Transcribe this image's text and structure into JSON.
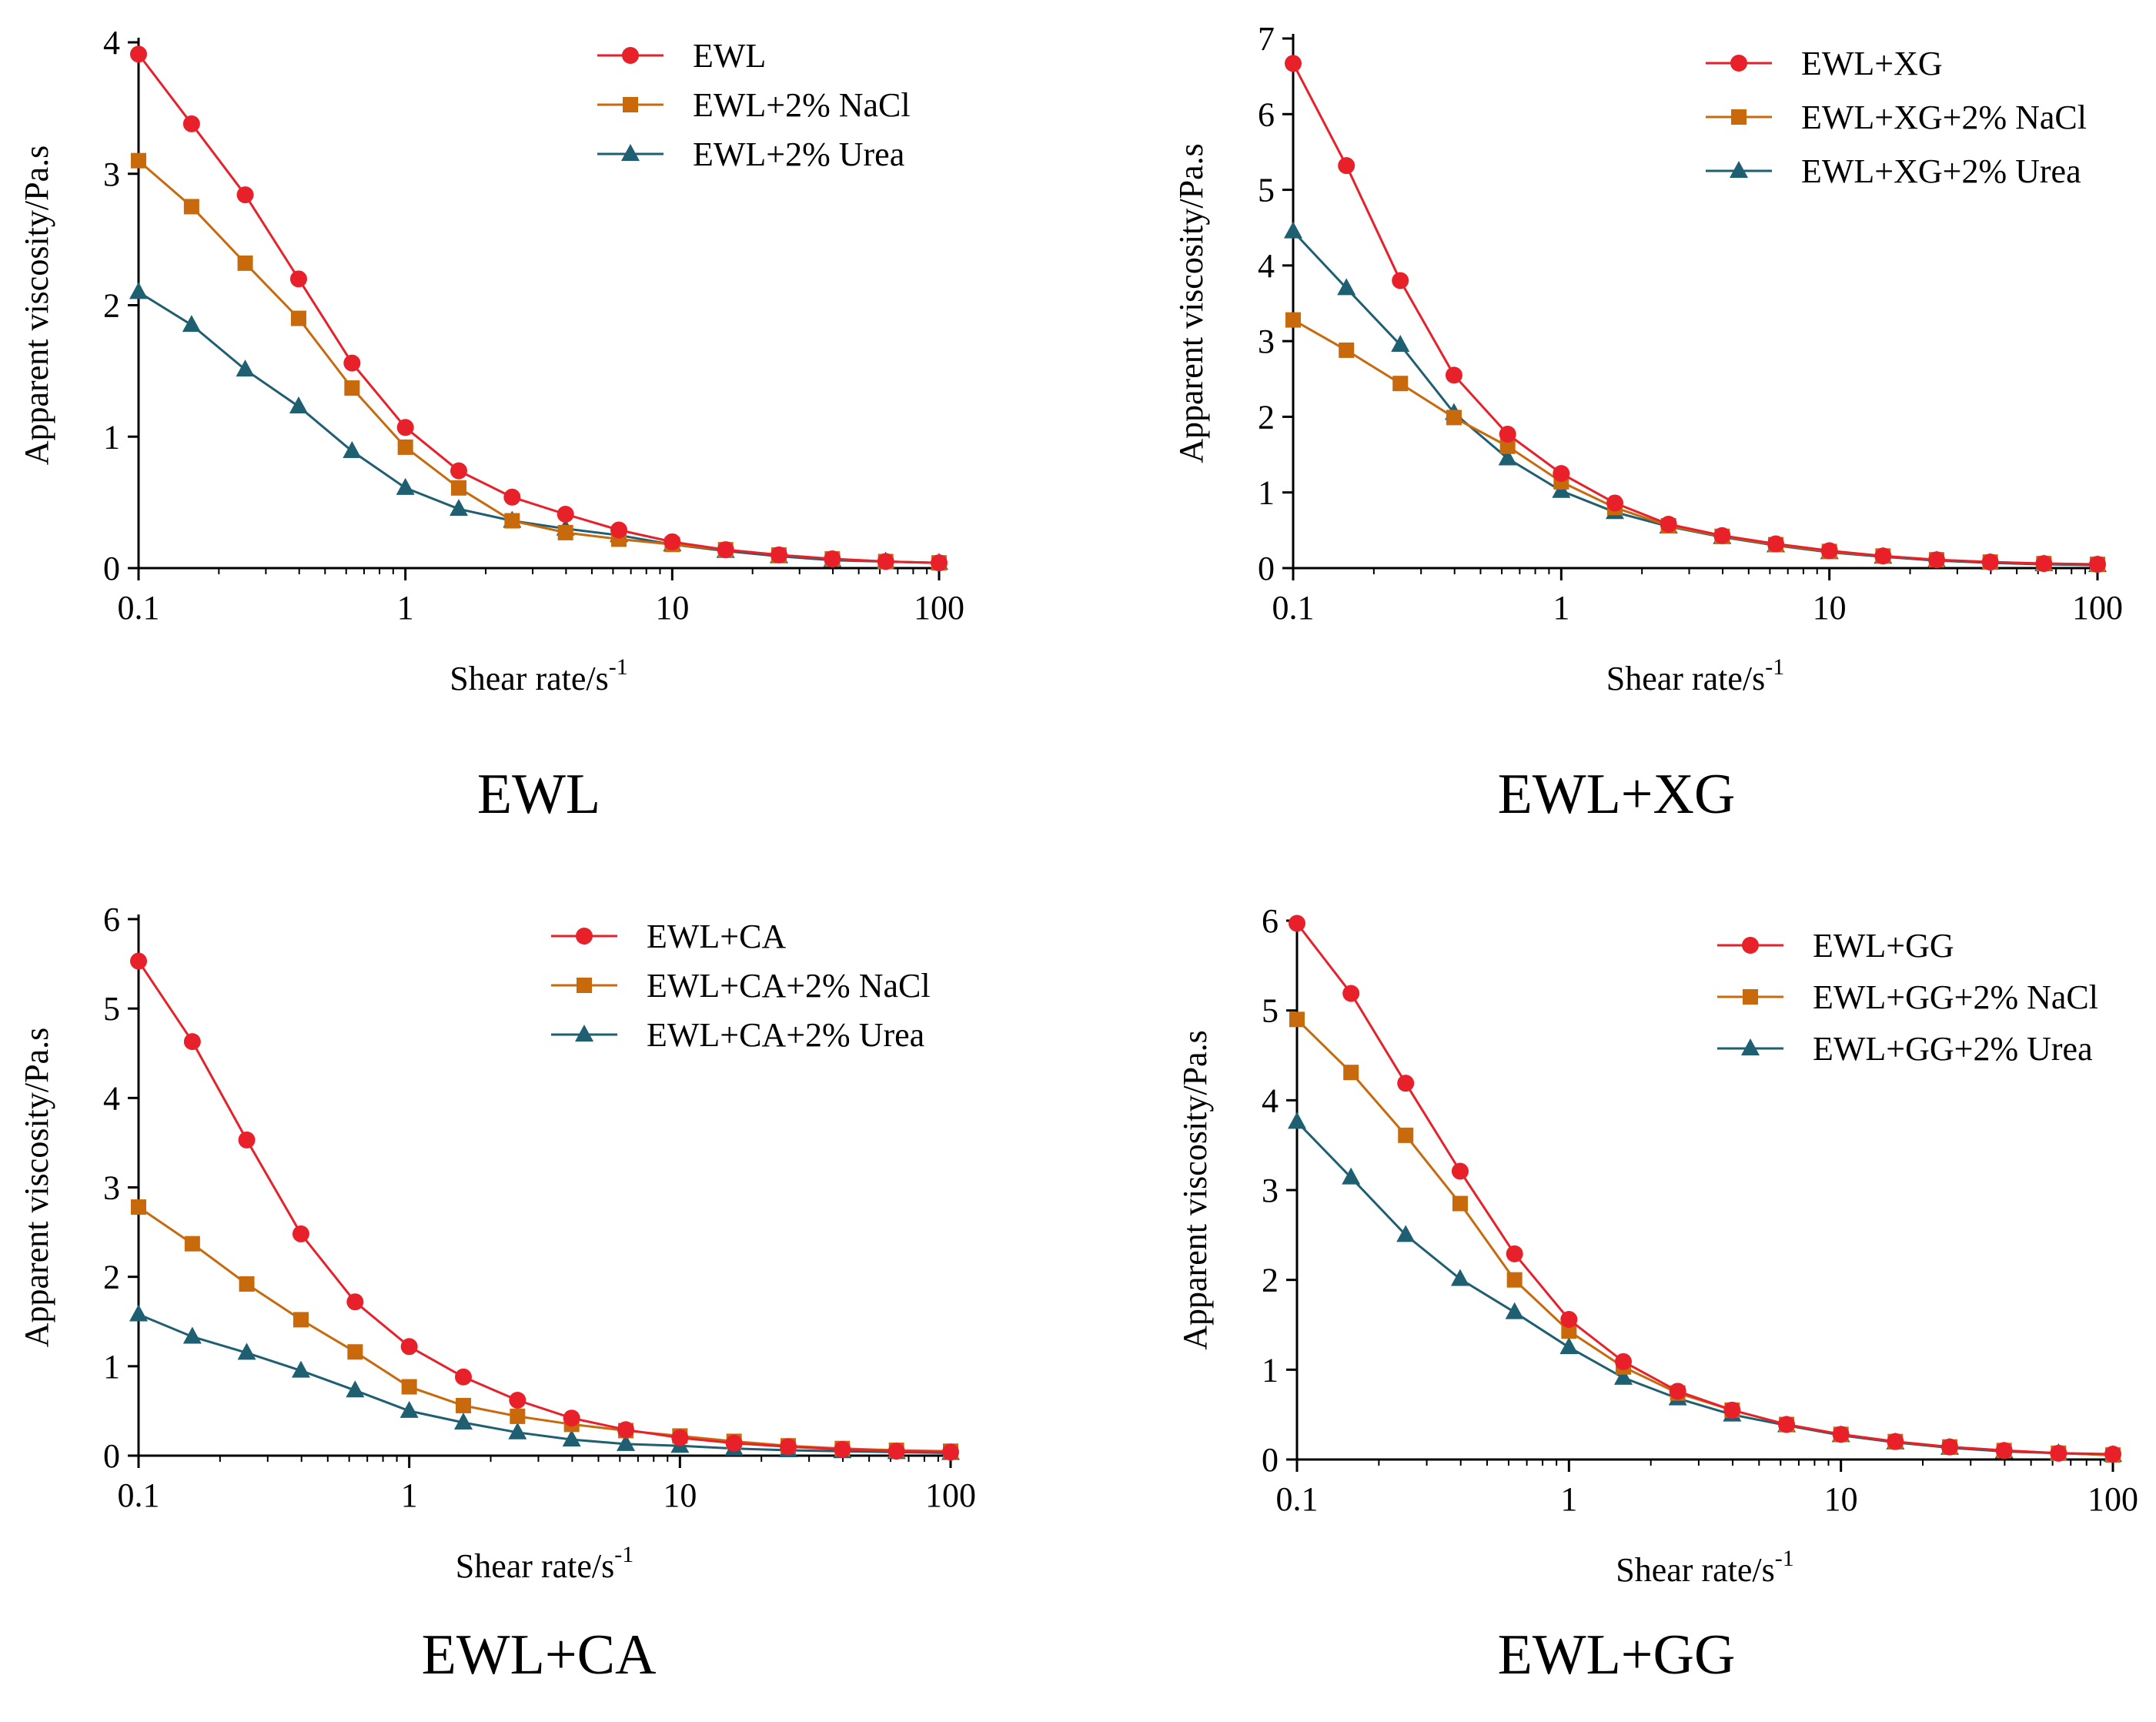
{
  "colors": {
    "red": "#e8202a",
    "orange": "#c8690c",
    "teal": "#1f5f72",
    "axis": "#000000"
  },
  "chart_data": [
    {
      "type": "line",
      "caption": "EWL",
      "xlabel": "Shear rate/s",
      "xlabel_sup": "-1",
      "ylabel": "Apparent viscosity/Pa.s",
      "xscale": "log",
      "xlim": [
        0.1,
        100
      ],
      "ylim": [
        0,
        4
      ],
      "yticks": [
        "0",
        "1",
        "2",
        "3",
        "4"
      ],
      "xticks": [
        "0.1",
        "1",
        "10",
        "100"
      ],
      "legend_position": "top-right",
      "x": [
        0.1,
        0.158,
        0.251,
        0.398,
        0.631,
        1,
        1.585,
        2.512,
        3.981,
        6.31,
        10,
        15.85,
        25.12,
        39.81,
        63.1,
        100
      ],
      "series": [
        {
          "name": "EWL",
          "color": "#e8202a",
          "marker": "circle",
          "values": [
            3.91,
            3.38,
            2.84,
            2.2,
            1.56,
            1.07,
            0.74,
            0.54,
            0.41,
            0.29,
            0.2,
            0.14,
            0.1,
            0.07,
            0.05,
            0.04
          ]
        },
        {
          "name": "EWL+2% NaCl",
          "color": "#c8690c",
          "marker": "square",
          "values": [
            3.1,
            2.75,
            2.32,
            1.9,
            1.37,
            0.92,
            0.61,
            0.36,
            0.27,
            0.22,
            0.18,
            0.14,
            0.1,
            0.07,
            0.05,
            0.04
          ]
        },
        {
          "name": "EWL+2% Urea",
          "color": "#1f5f72",
          "marker": "triangle",
          "values": [
            2.1,
            1.85,
            1.51,
            1.23,
            0.89,
            0.61,
            0.45,
            0.36,
            0.3,
            0.25,
            0.18,
            0.13,
            0.09,
            0.06,
            0.05,
            0.04
          ]
        }
      ]
    },
    {
      "type": "line",
      "caption": "EWL+XG",
      "xlabel": "Shear rate/s",
      "xlabel_sup": "-1",
      "ylabel": "Apparent viscosity/Pa.s",
      "xscale": "log",
      "xlim": [
        0.1,
        100
      ],
      "ylim": [
        0,
        7
      ],
      "yticks": [
        "0",
        "1",
        "2",
        "3",
        "4",
        "5",
        "6",
        "7"
      ],
      "xticks": [
        "0.1",
        "1",
        "10",
        "100"
      ],
      "legend_position": "top-right",
      "x": [
        0.1,
        0.158,
        0.251,
        0.398,
        0.631,
        1,
        1.585,
        2.512,
        3.981,
        6.31,
        10,
        15.85,
        25.12,
        39.81,
        63.1,
        100
      ],
      "series": [
        {
          "name": "EWL+XG",
          "color": "#e8202a",
          "marker": "circle",
          "values": [
            6.67,
            5.32,
            3.8,
            2.55,
            1.77,
            1.25,
            0.86,
            0.58,
            0.43,
            0.32,
            0.23,
            0.16,
            0.11,
            0.08,
            0.06,
            0.05
          ]
        },
        {
          "name": "EWL+XG+2% NaCl",
          "color": "#c8690c",
          "marker": "square",
          "values": [
            3.28,
            2.88,
            2.44,
            1.99,
            1.61,
            1.14,
            0.8,
            0.56,
            0.42,
            0.31,
            0.22,
            0.16,
            0.11,
            0.08,
            0.06,
            0.05
          ]
        },
        {
          "name": "EWL+XG+2% Urea",
          "color": "#1f5f72",
          "marker": "triangle",
          "values": [
            4.45,
            3.7,
            2.95,
            2.05,
            1.45,
            1.02,
            0.74,
            0.55,
            0.41,
            0.3,
            0.21,
            0.15,
            0.1,
            0.07,
            0.05,
            0.04
          ]
        }
      ]
    },
    {
      "type": "line",
      "caption": "EWL+CA",
      "xlabel": "Shear rate/s",
      "xlabel_sup": "-1",
      "ylabel": "Apparent viscosity/Pa.s",
      "xscale": "log",
      "xlim": [
        0.1,
        100
      ],
      "ylim": [
        0,
        6
      ],
      "yticks": [
        "0",
        "1",
        "2",
        "3",
        "4",
        "5",
        "6"
      ],
      "xticks": [
        "0.1",
        "1",
        "10",
        "100"
      ],
      "legend_position": "top-right",
      "x": [
        0.1,
        0.158,
        0.251,
        0.398,
        0.631,
        1,
        1.585,
        2.512,
        3.981,
        6.31,
        10,
        15.85,
        25.12,
        39.81,
        63.1,
        100
      ],
      "series": [
        {
          "name": "EWL+CA",
          "color": "#e8202a",
          "marker": "circle",
          "values": [
            5.53,
            4.63,
            3.53,
            2.48,
            1.72,
            1.22,
            0.88,
            0.62,
            0.42,
            0.29,
            0.2,
            0.14,
            0.1,
            0.07,
            0.05,
            0.04
          ]
        },
        {
          "name": "EWL+CA+2% NaCl",
          "color": "#c8690c",
          "marker": "square",
          "values": [
            2.78,
            2.37,
            1.92,
            1.52,
            1.16,
            0.77,
            0.56,
            0.44,
            0.35,
            0.28,
            0.22,
            0.16,
            0.11,
            0.08,
            0.06,
            0.05
          ]
        },
        {
          "name": "EWL+CA+2% Urea",
          "color": "#1f5f72",
          "marker": "triangle",
          "values": [
            1.58,
            1.33,
            1.15,
            0.95,
            0.73,
            0.5,
            0.37,
            0.26,
            0.18,
            0.13,
            0.11,
            0.08,
            0.06,
            0.05,
            0.04,
            0.03
          ]
        }
      ]
    },
    {
      "type": "line",
      "caption": "EWL+GG",
      "xlabel": "Shear rate/s",
      "xlabel_sup": "-1",
      "ylabel": "Apparent viscosity/Pa.s",
      "xscale": "log",
      "xlim": [
        0.1,
        100
      ],
      "ylim": [
        0,
        6
      ],
      "yticks": [
        "0",
        "1",
        "2",
        "3",
        "4",
        "5",
        "6"
      ],
      "xticks": [
        "0.1",
        "1",
        "10",
        "100"
      ],
      "legend_position": "top-right",
      "x": [
        0.1,
        0.158,
        0.251,
        0.398,
        0.631,
        1,
        1.585,
        2.512,
        3.981,
        6.31,
        10,
        15.85,
        25.12,
        39.81,
        63.1,
        100
      ],
      "series": [
        {
          "name": "EWL+GG",
          "color": "#e8202a",
          "marker": "circle",
          "values": [
            5.97,
            5.19,
            4.19,
            3.21,
            2.29,
            1.56,
            1.09,
            0.76,
            0.55,
            0.39,
            0.28,
            0.2,
            0.14,
            0.1,
            0.07,
            0.06
          ]
        },
        {
          "name": "EWL+GG+2% NaCl",
          "color": "#c8690c",
          "marker": "square",
          "values": [
            4.9,
            4.31,
            3.61,
            2.85,
            2.0,
            1.43,
            1.03,
            0.74,
            0.55,
            0.39,
            0.28,
            0.2,
            0.14,
            0.1,
            0.07,
            0.05
          ]
        },
        {
          "name": "EWL+GG+2% Urea",
          "color": "#1f5f72",
          "marker": "triangle",
          "values": [
            3.76,
            3.14,
            2.5,
            2.01,
            1.64,
            1.25,
            0.91,
            0.68,
            0.5,
            0.38,
            0.27,
            0.19,
            0.13,
            0.09,
            0.07,
            0.05
          ]
        }
      ]
    }
  ]
}
